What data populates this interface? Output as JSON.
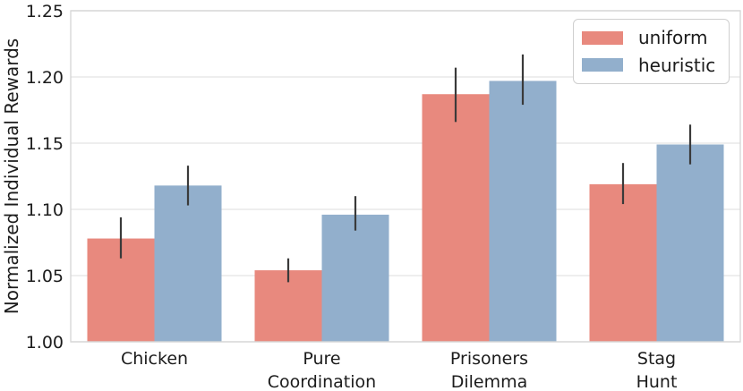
{
  "chart_data": {
    "type": "bar",
    "title": "",
    "xlabel": "",
    "ylabel": "Normalized Individual Rewards",
    "ylim": [
      1.0,
      1.25
    ],
    "yticks": [
      1.0,
      1.05,
      1.1,
      1.15,
      1.2,
      1.25
    ],
    "ytick_labels": [
      "1.00",
      "1.05",
      "1.10",
      "1.15",
      "1.20",
      "1.25"
    ],
    "categories": [
      [
        "Chicken"
      ],
      [
        "Pure",
        "Coordination"
      ],
      [
        "Prisoners",
        "Dilemma"
      ],
      [
        "Stag",
        "Hunt"
      ]
    ],
    "category_ids": [
      "chicken",
      "pure-coordination",
      "prisoners-dilemma",
      "stag-hunt"
    ],
    "series": [
      {
        "name": "uniform",
        "color": "#E8897E",
        "values": [
          1.078,
          1.054,
          1.187,
          1.119
        ],
        "err_low": [
          1.063,
          1.045,
          1.166,
          1.104
        ],
        "err_high": [
          1.094,
          1.063,
          1.207,
          1.135
        ]
      },
      {
        "name": "heuristic",
        "color": "#92AFCC",
        "values": [
          1.118,
          1.096,
          1.197,
          1.149
        ],
        "err_low": [
          1.103,
          1.084,
          1.179,
          1.134
        ],
        "err_high": [
          1.133,
          1.11,
          1.217,
          1.164
        ]
      }
    ],
    "legend": {
      "position": "upper right",
      "entries": [
        "uniform",
        "heuristic"
      ]
    },
    "grid": true,
    "errorbar_color": "#3a3a3a",
    "text_color": "#1c1c1c",
    "grid_color": "#e8e8e8",
    "spine_color": "#d8d8d8",
    "background": "#ffffff"
  }
}
